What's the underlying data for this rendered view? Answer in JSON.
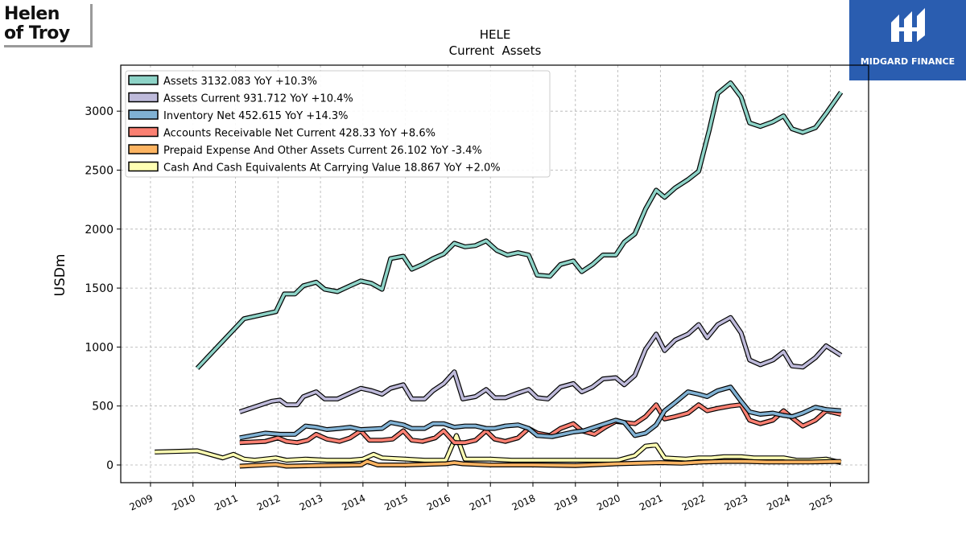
{
  "brand_left": {
    "line1": "Helen",
    "line2": "of Troy"
  },
  "brand_right": {
    "name": "MIDGARD FINANCE"
  },
  "colors": {
    "assets": "#8dd3c7",
    "assets_current": "#bebada",
    "inventory": "#80b1d3",
    "receivables": "#fb8072",
    "prepaid": "#fdb462",
    "cash": "#ffffb3"
  },
  "chart_data": {
    "type": "line",
    "title": "HELE",
    "subtitle": "Current  Assets",
    "xlabel": "",
    "ylabel": "USDm",
    "xlim": [
      2008.3,
      2025.9
    ],
    "ylim": [
      -150,
      3390
    ],
    "x_ticks": [
      "2009",
      "2010",
      "2011",
      "2012",
      "2013",
      "2014",
      "2015",
      "2016",
      "2017",
      "2018",
      "2019",
      "2020",
      "2021",
      "2022",
      "2023",
      "2024",
      "2025"
    ],
    "y_ticks": [
      "0",
      "500",
      "1000",
      "1500",
      "2000",
      "2500",
      "3000"
    ],
    "grid": true,
    "legend_position": "top-left",
    "series": [
      {
        "name": "Assets",
        "legend": "Assets  3132.083 YoY +10.3%",
        "color": "#8dd3c7",
        "points": [
          [
            2010.1,
            820
          ],
          [
            2011.2,
            1240
          ],
          [
            2011.95,
            1300
          ],
          [
            2012.15,
            1450
          ],
          [
            2012.4,
            1450
          ],
          [
            2012.6,
            1520
          ],
          [
            2012.9,
            1550
          ],
          [
            2013.1,
            1490
          ],
          [
            2013.4,
            1470
          ],
          [
            2013.7,
            1520
          ],
          [
            2013.95,
            1560
          ],
          [
            2014.2,
            1540
          ],
          [
            2014.45,
            1490
          ],
          [
            2014.65,
            1750
          ],
          [
            2014.95,
            1770
          ],
          [
            2015.15,
            1660
          ],
          [
            2015.4,
            1700
          ],
          [
            2015.65,
            1750
          ],
          [
            2015.9,
            1790
          ],
          [
            2016.15,
            1880
          ],
          [
            2016.4,
            1850
          ],
          [
            2016.65,
            1860
          ],
          [
            2016.9,
            1900
          ],
          [
            2017.15,
            1820
          ],
          [
            2017.4,
            1780
          ],
          [
            2017.65,
            1800
          ],
          [
            2017.9,
            1780
          ],
          [
            2018.1,
            1610
          ],
          [
            2018.4,
            1600
          ],
          [
            2018.65,
            1700
          ],
          [
            2018.95,
            1730
          ],
          [
            2019.15,
            1640
          ],
          [
            2019.4,
            1700
          ],
          [
            2019.65,
            1780
          ],
          [
            2019.95,
            1780
          ],
          [
            2020.15,
            1890
          ],
          [
            2020.4,
            1960
          ],
          [
            2020.65,
            2170
          ],
          [
            2020.9,
            2330
          ],
          [
            2021.1,
            2270
          ],
          [
            2021.35,
            2350
          ],
          [
            2021.65,
            2420
          ],
          [
            2021.9,
            2490
          ],
          [
            2022.15,
            2840
          ],
          [
            2022.35,
            3150
          ],
          [
            2022.65,
            3240
          ],
          [
            2022.9,
            3120
          ],
          [
            2023.1,
            2900
          ],
          [
            2023.35,
            2870
          ],
          [
            2023.65,
            2910
          ],
          [
            2023.9,
            2960
          ],
          [
            2024.1,
            2850
          ],
          [
            2024.35,
            2820
          ],
          [
            2024.65,
            2860
          ],
          [
            2024.9,
            2980
          ],
          [
            2025.25,
            3160
          ]
        ]
      },
      {
        "name": "Assets Current",
        "legend": "Assets Current  931.712 YoY +10.4%",
        "color": "#bebada",
        "points": [
          [
            2011.1,
            450
          ],
          [
            2011.85,
            540
          ],
          [
            2012.05,
            550
          ],
          [
            2012.2,
            510
          ],
          [
            2012.45,
            510
          ],
          [
            2012.6,
            580
          ],
          [
            2012.9,
            620
          ],
          [
            2013.1,
            560
          ],
          [
            2013.4,
            560
          ],
          [
            2013.7,
            610
          ],
          [
            2013.95,
            650
          ],
          [
            2014.2,
            630
          ],
          [
            2014.45,
            600
          ],
          [
            2014.65,
            650
          ],
          [
            2014.95,
            680
          ],
          [
            2015.15,
            560
          ],
          [
            2015.45,
            560
          ],
          [
            2015.65,
            630
          ],
          [
            2015.9,
            690
          ],
          [
            2016.15,
            790
          ],
          [
            2016.35,
            560
          ],
          [
            2016.65,
            580
          ],
          [
            2016.9,
            640
          ],
          [
            2017.1,
            570
          ],
          [
            2017.35,
            570
          ],
          [
            2017.65,
            610
          ],
          [
            2017.9,
            640
          ],
          [
            2018.1,
            570
          ],
          [
            2018.35,
            560
          ],
          [
            2018.65,
            660
          ],
          [
            2018.95,
            690
          ],
          [
            2019.15,
            620
          ],
          [
            2019.4,
            660
          ],
          [
            2019.65,
            730
          ],
          [
            2019.95,
            740
          ],
          [
            2020.15,
            680
          ],
          [
            2020.4,
            760
          ],
          [
            2020.65,
            980
          ],
          [
            2020.9,
            1110
          ],
          [
            2021.1,
            970
          ],
          [
            2021.35,
            1060
          ],
          [
            2021.65,
            1110
          ],
          [
            2021.9,
            1190
          ],
          [
            2022.1,
            1080
          ],
          [
            2022.35,
            1190
          ],
          [
            2022.65,
            1250
          ],
          [
            2022.9,
            1120
          ],
          [
            2023.1,
            890
          ],
          [
            2023.35,
            850
          ],
          [
            2023.65,
            890
          ],
          [
            2023.9,
            960
          ],
          [
            2024.1,
            840
          ],
          [
            2024.35,
            830
          ],
          [
            2024.65,
            910
          ],
          [
            2024.9,
            1010
          ],
          [
            2025.25,
            930
          ]
        ]
      },
      {
        "name": "Inventory Net",
        "legend": "Inventory Net  452.615 YoY +14.3%",
        "color": "#80b1d3",
        "points": [
          [
            2011.1,
            230
          ],
          [
            2011.7,
            270
          ],
          [
            2012.05,
            260
          ],
          [
            2012.4,
            260
          ],
          [
            2012.65,
            330
          ],
          [
            2012.9,
            320
          ],
          [
            2013.15,
            300
          ],
          [
            2013.45,
            310
          ],
          [
            2013.7,
            320
          ],
          [
            2013.95,
            300
          ],
          [
            2014.45,
            310
          ],
          [
            2014.65,
            360
          ],
          [
            2014.95,
            340
          ],
          [
            2015.15,
            310
          ],
          [
            2015.45,
            310
          ],
          [
            2015.65,
            350
          ],
          [
            2015.9,
            350
          ],
          [
            2016.15,
            320
          ],
          [
            2016.4,
            330
          ],
          [
            2016.65,
            330
          ],
          [
            2016.9,
            310
          ],
          [
            2017.1,
            310
          ],
          [
            2017.35,
            330
          ],
          [
            2017.65,
            340
          ],
          [
            2017.9,
            310
          ],
          [
            2018.1,
            250
          ],
          [
            2018.45,
            240
          ],
          [
            2018.7,
            260
          ],
          [
            2018.95,
            280
          ],
          [
            2019.2,
            290
          ],
          [
            2019.45,
            320
          ],
          [
            2019.7,
            350
          ],
          [
            2019.95,
            380
          ],
          [
            2020.15,
            360
          ],
          [
            2020.4,
            250
          ],
          [
            2020.65,
            270
          ],
          [
            2020.9,
            340
          ],
          [
            2021.1,
            460
          ],
          [
            2021.35,
            530
          ],
          [
            2021.65,
            620
          ],
          [
            2021.9,
            600
          ],
          [
            2022.1,
            580
          ],
          [
            2022.35,
            630
          ],
          [
            2022.65,
            660
          ],
          [
            2022.9,
            540
          ],
          [
            2023.1,
            450
          ],
          [
            2023.35,
            430
          ],
          [
            2023.65,
            440
          ],
          [
            2023.9,
            420
          ],
          [
            2024.1,
            410
          ],
          [
            2024.35,
            440
          ],
          [
            2024.65,
            490
          ],
          [
            2024.9,
            470
          ],
          [
            2025.25,
            460
          ]
        ]
      },
      {
        "name": "Accounts Receivable Net Current",
        "legend": "Accounts Receivable Net Current  428.33 YoY +8.6%",
        "color": "#fb8072",
        "points": [
          [
            2011.1,
            190
          ],
          [
            2011.7,
            200
          ],
          [
            2012.0,
            230
          ],
          [
            2012.2,
            200
          ],
          [
            2012.45,
            190
          ],
          [
            2012.7,
            210
          ],
          [
            2012.9,
            260
          ],
          [
            2013.15,
            220
          ],
          [
            2013.45,
            200
          ],
          [
            2013.7,
            230
          ],
          [
            2013.95,
            290
          ],
          [
            2014.15,
            210
          ],
          [
            2014.45,
            210
          ],
          [
            2014.7,
            220
          ],
          [
            2014.95,
            290
          ],
          [
            2015.15,
            210
          ],
          [
            2015.4,
            200
          ],
          [
            2015.7,
            230
          ],
          [
            2015.9,
            290
          ],
          [
            2016.15,
            190
          ],
          [
            2016.4,
            190
          ],
          [
            2016.65,
            210
          ],
          [
            2016.9,
            290
          ],
          [
            2017.1,
            220
          ],
          [
            2017.35,
            200
          ],
          [
            2017.65,
            230
          ],
          [
            2017.9,
            310
          ],
          [
            2018.1,
            270
          ],
          [
            2018.4,
            250
          ],
          [
            2018.65,
            310
          ],
          [
            2018.95,
            350
          ],
          [
            2019.15,
            290
          ],
          [
            2019.45,
            260
          ],
          [
            2019.7,
            320
          ],
          [
            2019.95,
            370
          ],
          [
            2020.15,
            360
          ],
          [
            2020.4,
            350
          ],
          [
            2020.65,
            410
          ],
          [
            2020.9,
            510
          ],
          [
            2021.1,
            390
          ],
          [
            2021.35,
            410
          ],
          [
            2021.65,
            440
          ],
          [
            2021.9,
            510
          ],
          [
            2022.1,
            460
          ],
          [
            2022.35,
            480
          ],
          [
            2022.65,
            500
          ],
          [
            2022.9,
            510
          ],
          [
            2023.1,
            380
          ],
          [
            2023.35,
            350
          ],
          [
            2023.65,
            380
          ],
          [
            2023.9,
            460
          ],
          [
            2024.1,
            400
          ],
          [
            2024.35,
            330
          ],
          [
            2024.65,
            380
          ],
          [
            2024.9,
            460
          ],
          [
            2025.25,
            430
          ]
        ]
      },
      {
        "name": "Prepaid Expense And Other Assets Current",
        "legend": "Prepaid Expense And Other Assets Current  26.102 YoY -3.4%",
        "color": "#fdb462",
        "points": [
          [
            2011.1,
            -10
          ],
          [
            2011.95,
            5
          ],
          [
            2012.2,
            -10
          ],
          [
            2013.0,
            -5
          ],
          [
            2013.95,
            0
          ],
          [
            2014.1,
            30
          ],
          [
            2014.35,
            0
          ],
          [
            2015.0,
            0
          ],
          [
            2015.95,
            10
          ],
          [
            2016.15,
            20
          ],
          [
            2016.35,
            10
          ],
          [
            2017.0,
            0
          ],
          [
            2018.0,
            0
          ],
          [
            2019.0,
            -5
          ],
          [
            2020.0,
            10
          ],
          [
            2020.5,
            15
          ],
          [
            2021.0,
            20
          ],
          [
            2021.5,
            15
          ],
          [
            2022.0,
            25
          ],
          [
            2022.5,
            30
          ],
          [
            2023.0,
            30
          ],
          [
            2023.5,
            25
          ],
          [
            2024.0,
            25
          ],
          [
            2024.5,
            25
          ],
          [
            2025.25,
            30
          ]
        ]
      },
      {
        "name": "Cash And Cash Equivalents At Carrying Value",
        "legend": "Cash And Cash Equivalents At Carrying Value  18.867 YoY +2.0%",
        "color": "#ffffb3",
        "points": [
          [
            2009.1,
            110
          ],
          [
            2010.1,
            120
          ],
          [
            2010.7,
            60
          ],
          [
            2010.95,
            90
          ],
          [
            2011.2,
            50
          ],
          [
            2011.45,
            40
          ],
          [
            2011.95,
            60
          ],
          [
            2012.2,
            40
          ],
          [
            2012.65,
            50
          ],
          [
            2013.15,
            40
          ],
          [
            2013.7,
            40
          ],
          [
            2014.0,
            50
          ],
          [
            2014.25,
            90
          ],
          [
            2014.45,
            60
          ],
          [
            2015.0,
            50
          ],
          [
            2015.45,
            40
          ],
          [
            2015.95,
            40
          ],
          [
            2016.2,
            250
          ],
          [
            2016.4,
            50
          ],
          [
            2017.0,
            50
          ],
          [
            2017.5,
            40
          ],
          [
            2018.0,
            40
          ],
          [
            2018.5,
            40
          ],
          [
            2019.0,
            40
          ],
          [
            2019.5,
            40
          ],
          [
            2020.0,
            40
          ],
          [
            2020.4,
            80
          ],
          [
            2020.65,
            160
          ],
          [
            2020.9,
            170
          ],
          [
            2021.1,
            60
          ],
          [
            2021.6,
            50
          ],
          [
            2021.9,
            60
          ],
          [
            2022.2,
            60
          ],
          [
            2022.5,
            70
          ],
          [
            2022.9,
            70
          ],
          [
            2023.2,
            60
          ],
          [
            2023.5,
            60
          ],
          [
            2023.9,
            60
          ],
          [
            2024.2,
            40
          ],
          [
            2024.5,
            40
          ],
          [
            2024.9,
            50
          ],
          [
            2025.25,
            20
          ]
        ]
      }
    ]
  }
}
